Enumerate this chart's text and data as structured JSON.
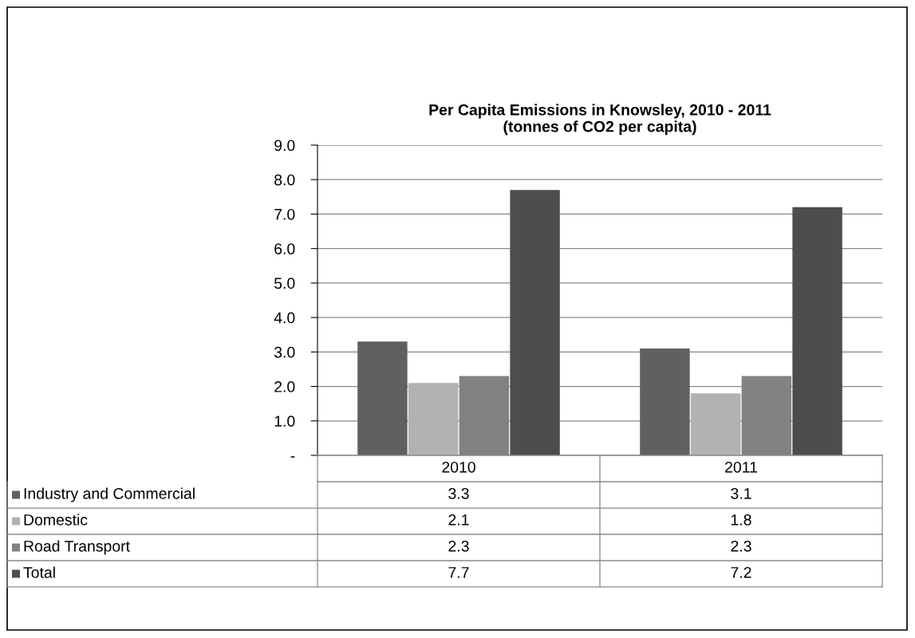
{
  "chart_data": {
    "type": "bar",
    "title": "Per Capita Emissions in Knowsley, 2010 - 2011\n(tonnes of CO2 per capita)",
    "categories": [
      "2010",
      "2011"
    ],
    "series": [
      {
        "name": "Industry and Commercial",
        "color": "#606060",
        "values": [
          3.3,
          3.1
        ]
      },
      {
        "name": "Domestic",
        "color": "#b2b2b2",
        "values": [
          2.1,
          1.8
        ]
      },
      {
        "name": "Road Transport",
        "color": "#828282",
        "values": [
          2.3,
          2.3
        ]
      },
      {
        "name": "Total",
        "color": "#4d4d4d",
        "values": [
          7.7,
          7.2
        ]
      }
    ],
    "ylim": [
      0,
      9
    ],
    "yticks": [
      {
        "value": 0,
        "label": "-"
      },
      {
        "value": 1,
        "label": "1.0"
      },
      {
        "value": 2,
        "label": "2.0"
      },
      {
        "value": 3,
        "label": "3.0"
      },
      {
        "value": 4,
        "label": "4.0"
      },
      {
        "value": 5,
        "label": "5.0"
      },
      {
        "value": 6,
        "label": "6.0"
      },
      {
        "value": 7,
        "label": "7.0"
      },
      {
        "value": 8,
        "label": "8.0"
      },
      {
        "value": 9,
        "label": "9.0"
      }
    ],
    "grid": "y",
    "data_labels": true,
    "legend": "bottom"
  }
}
